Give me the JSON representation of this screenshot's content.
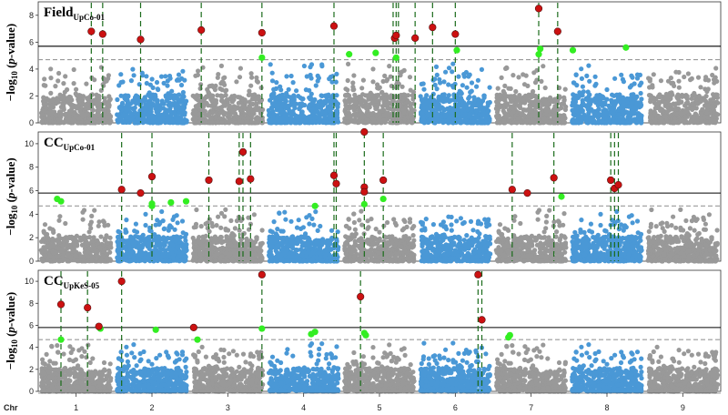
{
  "x_axis": {
    "chr_label": "Chr",
    "chromosomes": [
      "1",
      "2",
      "3",
      "4",
      "5",
      "6",
      "7",
      "8",
      "9"
    ],
    "boundaries": [
      0,
      1.0,
      2.0,
      3.0,
      4.0,
      5.0,
      6.0,
      7.0,
      8.0,
      9.0
    ]
  },
  "y_axis_label": {
    "prefix": "−log",
    "sub": "10",
    "suffix_open": " (",
    "italic": "p",
    "suffix_close": "-value)"
  },
  "colors": {
    "odd_chromosome": "#999999",
    "even_chromosome": "#4a98d6",
    "significant": "#cc1111",
    "suggestive": "#33ee22",
    "marker_line": "#1a6b1a",
    "threshold_solid": "#000000",
    "threshold_dashed": "#999999"
  },
  "chart_data": [
    {
      "type": "scatter",
      "title_main": "Field",
      "title_sub": "UpCo-01",
      "ylim": [
        0,
        9
      ],
      "yticks": [
        0,
        2,
        4,
        6,
        8
      ],
      "threshold_significant": 5.7,
      "threshold_suggestive": 4.7,
      "significant_points": [
        [
          0.7,
          6.8
        ],
        [
          0.85,
          6.6
        ],
        [
          1.35,
          6.2
        ],
        [
          2.15,
          6.9
        ],
        [
          2.95,
          6.7
        ],
        [
          3.9,
          7.2
        ],
        [
          4.7,
          6.3
        ],
        [
          4.72,
          6.5
        ],
        [
          4.97,
          6.3
        ],
        [
          5.2,
          7.1
        ],
        [
          5.5,
          6.6
        ],
        [
          6.6,
          8.5
        ],
        [
          6.85,
          6.8
        ]
      ],
      "suggestive_points": [
        [
          2.95,
          4.85
        ],
        [
          4.1,
          5.1
        ],
        [
          4.45,
          5.2
        ],
        [
          4.72,
          4.85
        ],
        [
          5.52,
          5.4
        ],
        [
          6.6,
          5.1
        ],
        [
          6.62,
          5.5
        ],
        [
          7.05,
          5.4
        ],
        [
          7.75,
          5.6
        ]
      ],
      "marker_x": [
        0.7,
        0.85,
        1.35,
        2.15,
        2.95,
        3.9,
        4.68,
        4.72,
        4.75,
        4.97,
        5.2,
        5.5,
        6.6,
        6.85
      ]
    },
    {
      "type": "scatter",
      "title_main": "CC",
      "title_sub": "UpCo-01",
      "ylim": [
        0,
        11
      ],
      "yticks": [
        0,
        2,
        4,
        6,
        8,
        10
      ],
      "threshold_significant": 5.8,
      "threshold_suggestive": 4.7,
      "significant_points": [
        [
          1.1,
          6.1
        ],
        [
          1.35,
          5.8
        ],
        [
          1.5,
          7.2
        ],
        [
          2.25,
          6.9
        ],
        [
          2.65,
          6.8
        ],
        [
          2.7,
          9.3
        ],
        [
          2.8,
          7.0
        ],
        [
          3.9,
          7.3
        ],
        [
          3.93,
          6.6
        ],
        [
          4.3,
          6.3
        ],
        [
          4.3,
          5.9
        ],
        [
          4.3,
          11.0
        ],
        [
          4.55,
          6.9
        ],
        [
          6.25,
          6.1
        ],
        [
          6.45,
          5.8
        ],
        [
          6.8,
          7.1
        ],
        [
          7.55,
          6.9
        ],
        [
          7.6,
          6.2
        ],
        [
          7.65,
          6.5
        ]
      ],
      "suggestive_points": [
        [
          0.25,
          5.3
        ],
        [
          0.3,
          5.1
        ],
        [
          1.5,
          4.9
        ],
        [
          1.5,
          4.7
        ],
        [
          1.75,
          5.0
        ],
        [
          1.95,
          5.1
        ],
        [
          3.65,
          4.7
        ],
        [
          4.3,
          4.85
        ],
        [
          4.55,
          5.3
        ],
        [
          6.9,
          5.5
        ]
      ],
      "marker_x": [
        1.1,
        1.5,
        2.25,
        2.65,
        2.7,
        2.8,
        3.9,
        3.93,
        4.3,
        4.55,
        6.25,
        6.8,
        7.55,
        7.6,
        7.65
      ]
    },
    {
      "type": "scatter",
      "title_main": "CC",
      "title_sub": "UpKeS-05",
      "ylim": [
        0,
        11
      ],
      "yticks": [
        0,
        2,
        4,
        6,
        8,
        10
      ],
      "threshold_significant": 5.8,
      "threshold_suggestive": 4.7,
      "significant_points": [
        [
          0.3,
          7.9
        ],
        [
          0.65,
          7.6
        ],
        [
          0.8,
          5.9
        ],
        [
          1.1,
          10.0
        ],
        [
          2.05,
          5.8
        ],
        [
          2.95,
          10.6
        ],
        [
          4.25,
          8.6
        ],
        [
          5.8,
          10.6
        ],
        [
          5.85,
          6.5
        ]
      ],
      "suggestive_points": [
        [
          0.3,
          4.7
        ],
        [
          0.82,
          5.7
        ],
        [
          1.55,
          5.6
        ],
        [
          2.1,
          4.7
        ],
        [
          2.95,
          5.7
        ],
        [
          3.6,
          5.2
        ],
        [
          3.65,
          5.4
        ],
        [
          4.3,
          5.3
        ],
        [
          4.32,
          5.1
        ],
        [
          6.2,
          4.9
        ],
        [
          6.22,
          5.1
        ]
      ],
      "marker_x": [
        0.3,
        0.65,
        1.1,
        2.95,
        4.25,
        5.8,
        5.85
      ]
    }
  ]
}
